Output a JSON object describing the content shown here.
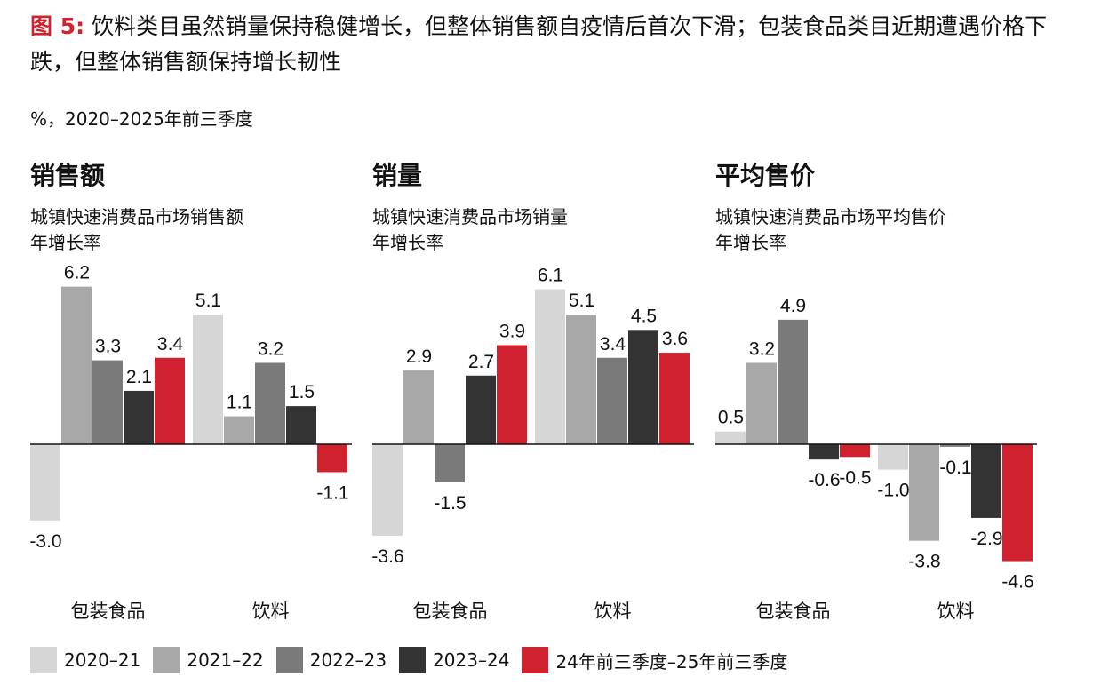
{
  "title": {
    "fig_label": "图 5:",
    "text": "饮料类目虽然销量保持稳健增长，但整体销售额自疫情后首次下滑；包装食品类目近期遭遇价格下跌，但整体销售额保持增长韧性"
  },
  "unit_note": "%，2020–2025年前三季度",
  "panels": [
    {
      "title": "销售额",
      "subtitle_line1": "城镇快速消费品市场销售额",
      "subtitle_line2": "年增长率"
    },
    {
      "title": "销量",
      "subtitle_line1": "城镇快速消费品市场销量",
      "subtitle_line2": "年增长率"
    },
    {
      "title": "平均售价",
      "subtitle_line1": "城镇快速消费品市场平均售价",
      "subtitle_line2": "年增长率"
    }
  ],
  "legend": [
    {
      "label": "2020–21",
      "color": "#d6d6d6"
    },
    {
      "label": "2021–22",
      "color": "#a8a8a8"
    },
    {
      "label": "2022–23",
      "color": "#7a7a7a"
    },
    {
      "label": "2023–24",
      "color": "#333333"
    },
    {
      "label": "24年前三季度–25年前三季度",
      "color": "#d0222e"
    }
  ],
  "chart_data": [
    {
      "type": "bar",
      "title": "销售额",
      "ylabel": "城镇快速消费品市场销售额年增长率 (%)",
      "categories": [
        "包装食品",
        "饮料"
      ],
      "series": [
        {
          "name": "2020–21",
          "values": [
            -3.0,
            5.1
          ]
        },
        {
          "name": "2021–22",
          "values": [
            6.2,
            1.1
          ]
        },
        {
          "name": "2022–23",
          "values": [
            3.3,
            3.2
          ]
        },
        {
          "name": "2023–24",
          "values": [
            2.1,
            1.5
          ]
        },
        {
          "name": "24年前三季度–25年前三季度",
          "values": [
            3.4,
            -1.1
          ]
        }
      ]
    },
    {
      "type": "bar",
      "title": "销量",
      "ylabel": "城镇快速消费品市场销量年增长率 (%)",
      "categories": [
        "包装食品",
        "饮料"
      ],
      "series": [
        {
          "name": "2020–21",
          "values": [
            -3.6,
            6.1
          ]
        },
        {
          "name": "2021–22",
          "values": [
            2.9,
            5.1
          ]
        },
        {
          "name": "2022–23",
          "values": [
            -1.5,
            3.4
          ]
        },
        {
          "name": "2023–24",
          "values": [
            2.7,
            4.5
          ]
        },
        {
          "name": "24年前三季度–25年前三季度",
          "values": [
            3.9,
            3.6
          ]
        }
      ]
    },
    {
      "type": "bar",
      "title": "平均售价",
      "ylabel": "城镇快速消费品市场平均售价年增长率 (%)",
      "categories": [
        "包装食品",
        "饮料"
      ],
      "series": [
        {
          "name": "2020–21",
          "values": [
            0.5,
            -1.0
          ]
        },
        {
          "name": "2021–22",
          "values": [
            3.2,
            -3.8
          ]
        },
        {
          "name": "2022–23",
          "values": [
            4.9,
            -0.1
          ]
        },
        {
          "name": "2023–24",
          "values": [
            -0.6,
            -2.9
          ]
        },
        {
          "name": "24年前三季度–25年前三季度",
          "values": [
            -0.5,
            -4.6
          ]
        }
      ]
    }
  ]
}
